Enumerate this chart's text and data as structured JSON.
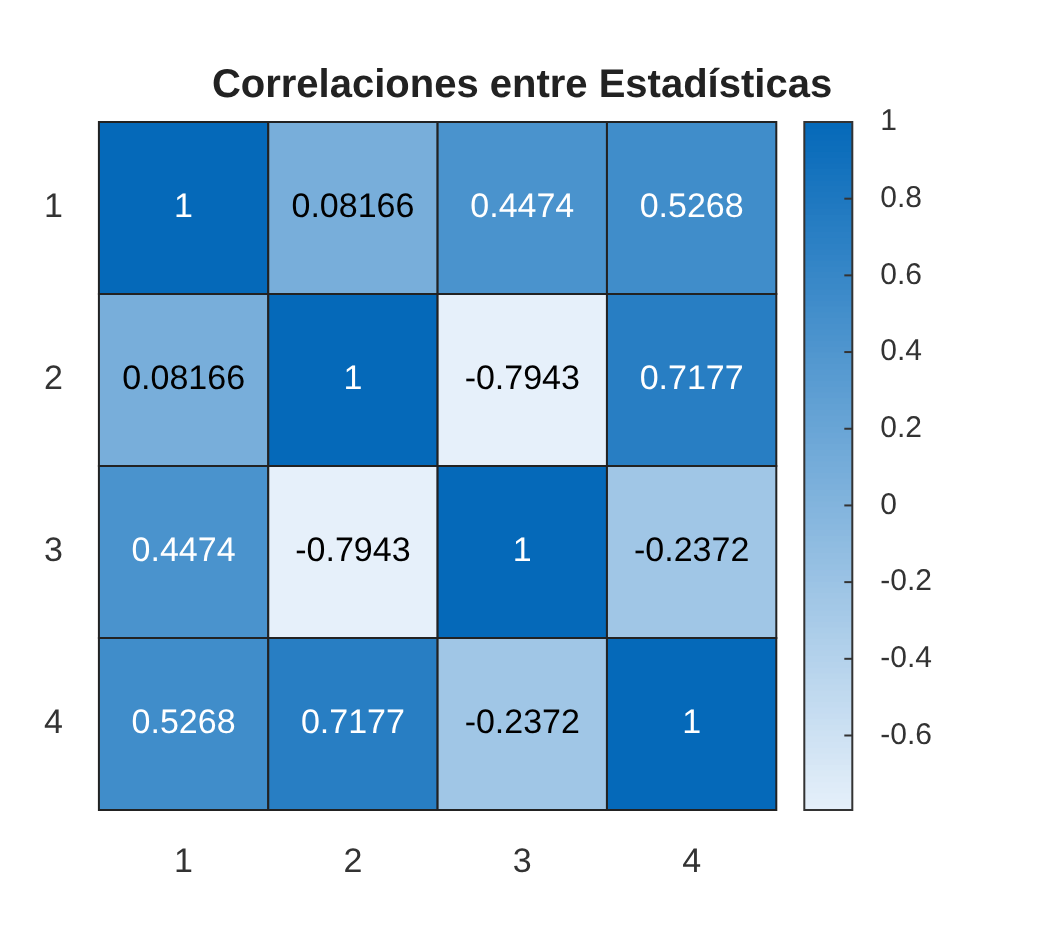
{
  "chart_data": {
    "type": "heatmap",
    "title": "Correlaciones entre Estadísticas",
    "categories": [
      "1",
      "2",
      "3",
      "4"
    ],
    "y_categories": [
      "1",
      "2",
      "3",
      "4"
    ],
    "cells": [
      [
        1,
        0.08166,
        0.4474,
        0.5268
      ],
      [
        0.08166,
        1,
        -0.7943,
        0.7177
      ],
      [
        0.4474,
        -0.7943,
        1,
        -0.2372
      ],
      [
        0.5268,
        0.7177,
        -0.2372,
        1
      ]
    ],
    "clim": [
      -0.7943,
      1
    ],
    "cticks": [
      -0.6,
      -0.4,
      -0.2,
      0,
      0.2,
      0.4,
      0.6,
      0.8,
      1
    ],
    "data_labels": true
  }
}
